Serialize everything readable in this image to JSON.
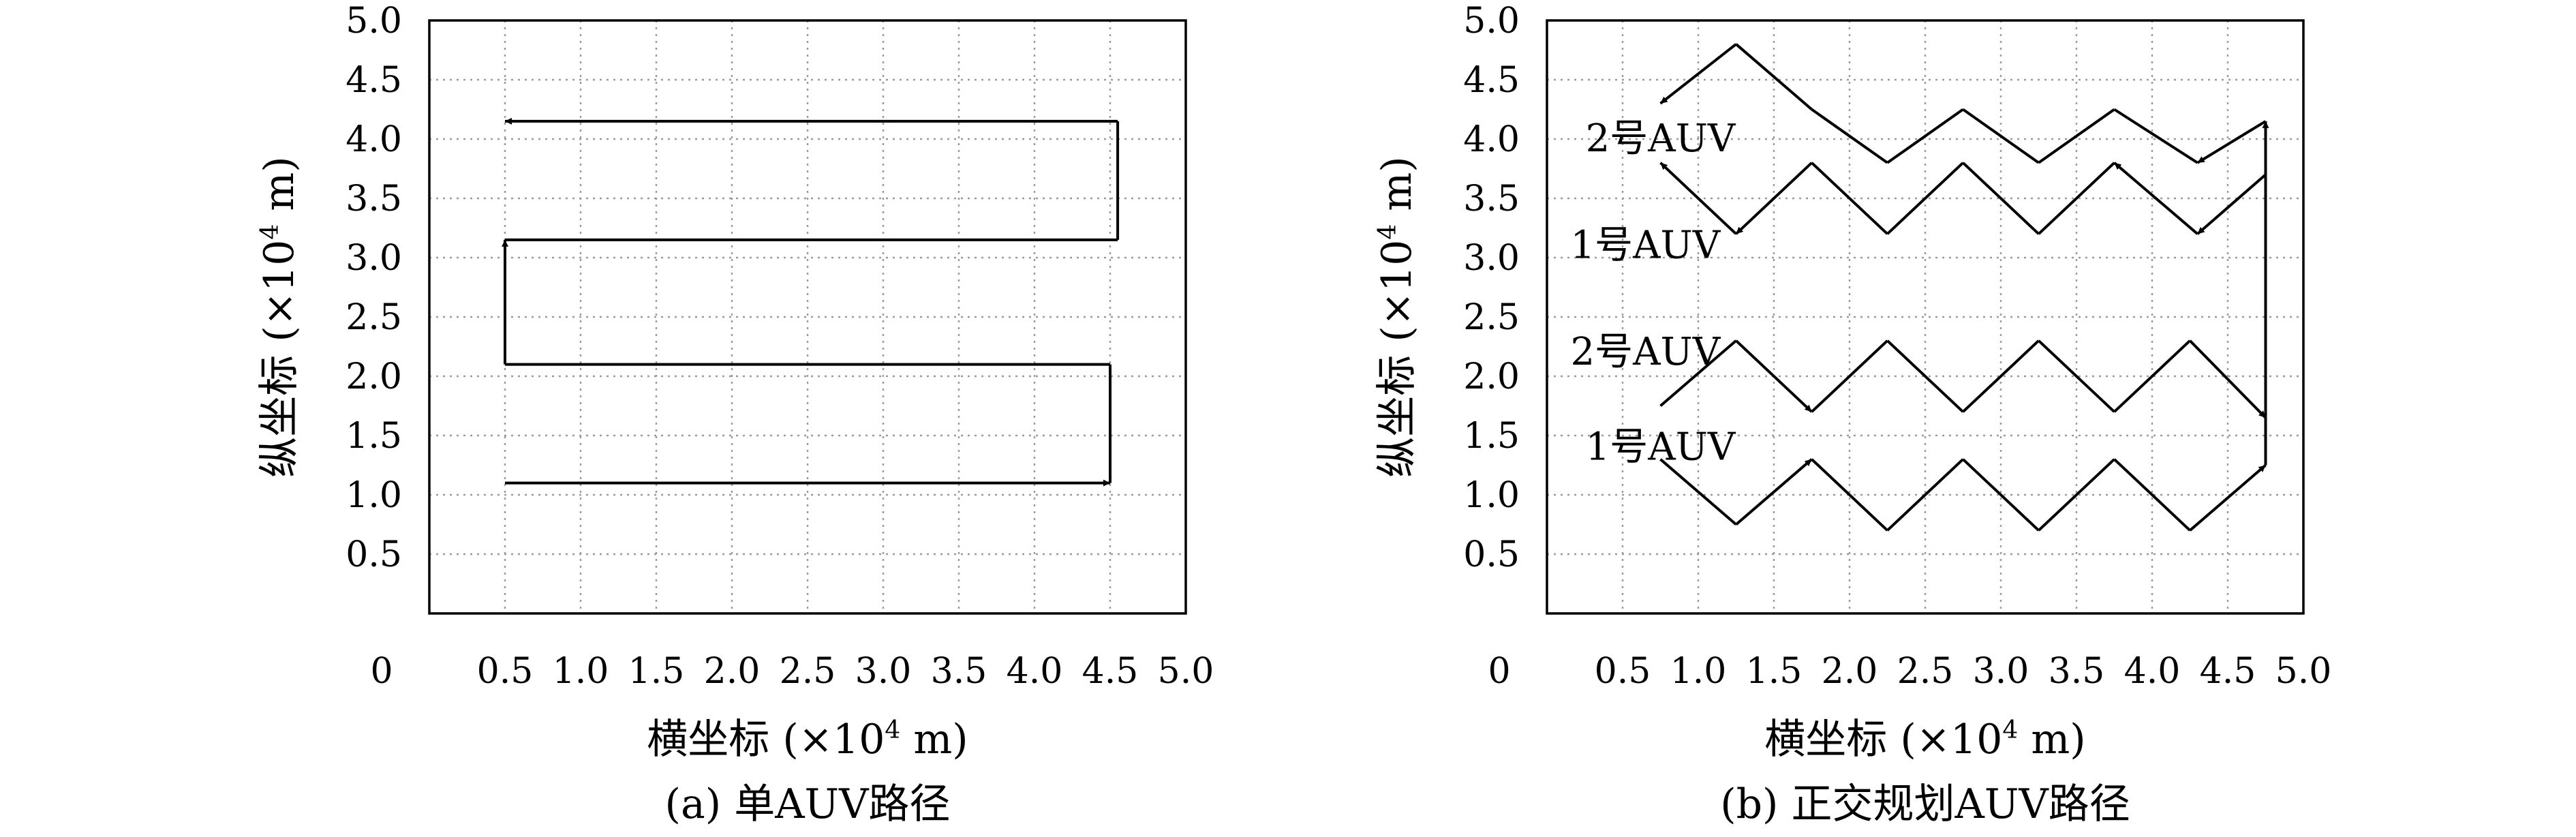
{
  "chart_data": [
    {
      "type": "line",
      "caption": "(a) 单AUV路径",
      "xlabel": "横坐标 (×10⁴ m)",
      "ylabel": "纵坐标 (×10⁴ m)",
      "xlim": [
        0,
        5.0
      ],
      "ylim": [
        0,
        5.0
      ],
      "x_ticks": [
        "0",
        "0.5",
        "1.0",
        "1.5",
        "2.0",
        "2.5",
        "3.0",
        "3.5",
        "4.0",
        "4.5",
        "5.0"
      ],
      "y_ticks": [
        "0.5",
        "1.0",
        "1.5",
        "2.0",
        "2.5",
        "3.0",
        "3.5",
        "4.0",
        "4.5",
        "5.0"
      ],
      "grid": true,
      "series": [
        {
          "points": [
            [
              0.5,
              1.1
            ],
            [
              4.5,
              1.1
            ],
            [
              4.5,
              2.1
            ],
            [
              0.5,
              2.1
            ],
            [
              0.5,
              3.15
            ],
            [
              4.55,
              3.15
            ],
            [
              4.55,
              4.15
            ],
            [
              0.5,
              4.15
            ]
          ],
          "arrows_at": [
            1,
            4,
            7
          ]
        }
      ]
    },
    {
      "type": "line",
      "caption": "(b) 正交规划AUV路径",
      "xlabel": "横坐标 (×10⁴ m)",
      "ylabel": "纵坐标 (×10⁴ m)",
      "xlim": [
        0,
        5.0
      ],
      "ylim": [
        0,
        5.0
      ],
      "x_ticks": [
        "0",
        "0.5",
        "1.0",
        "1.5",
        "2.0",
        "2.5",
        "3.0",
        "3.5",
        "4.0",
        "4.5",
        "5.0"
      ],
      "y_ticks": [
        "0.5",
        "1.0",
        "1.5",
        "2.0",
        "2.5",
        "3.0",
        "3.5",
        "4.0",
        "4.5",
        "5.0"
      ],
      "grid": true,
      "series": [
        {
          "name": "1号AUV",
          "points": [
            [
              0.75,
              1.3
            ],
            [
              1.25,
              0.75
            ],
            [
              1.75,
              1.3
            ],
            [
              2.25,
              0.7
            ],
            [
              2.75,
              1.3
            ],
            [
              3.25,
              0.7
            ],
            [
              3.75,
              1.3
            ],
            [
              4.25,
              0.7
            ],
            [
              4.75,
              1.25
            ],
            [
              4.75,
              4.15
            ],
            [
              4.3,
              3.8
            ],
            [
              3.75,
              4.25
            ],
            [
              3.25,
              3.8
            ],
            [
              2.75,
              4.25
            ],
            [
              2.25,
              3.8
            ],
            [
              1.75,
              4.25
            ],
            [
              1.25,
              4.8
            ],
            [
              0.75,
              4.3
            ]
          ],
          "arrows_at": [
            2,
            8,
            9,
            10,
            17
          ]
        },
        {
          "name": "2号AUV",
          "points": [
            [
              0.75,
              1.75
            ],
            [
              1.25,
              2.3
            ],
            [
              1.75,
              1.7
            ],
            [
              2.25,
              2.3
            ],
            [
              2.75,
              1.7
            ],
            [
              3.25,
              2.3
            ],
            [
              3.75,
              1.7
            ],
            [
              4.25,
              2.3
            ],
            [
              4.75,
              1.65
            ]
          ],
          "arrows_at": [
            2,
            8
          ]
        },
        {
          "name": "1号AUV",
          "points": [
            [
              4.75,
              3.7
            ],
            [
              4.3,
              3.2
            ],
            [
              3.75,
              3.8
            ],
            [
              3.25,
              3.2
            ],
            [
              2.75,
              3.8
            ],
            [
              2.25,
              3.2
            ],
            [
              1.75,
              3.8
            ],
            [
              1.25,
              3.2
            ],
            [
              0.75,
              3.8
            ]
          ],
          "arrows_at": [
            1,
            2,
            7,
            8
          ]
        }
      ],
      "labels": [
        {
          "text": "2号AUV",
          "x": 0.75,
          "y": 4.0
        },
        {
          "text": "1号AUV",
          "x": 0.65,
          "y": 3.1
        },
        {
          "text": "2号AUV",
          "x": 0.65,
          "y": 2.2
        },
        {
          "text": "1号AUV",
          "x": 0.75,
          "y": 1.4
        }
      ]
    }
  ]
}
